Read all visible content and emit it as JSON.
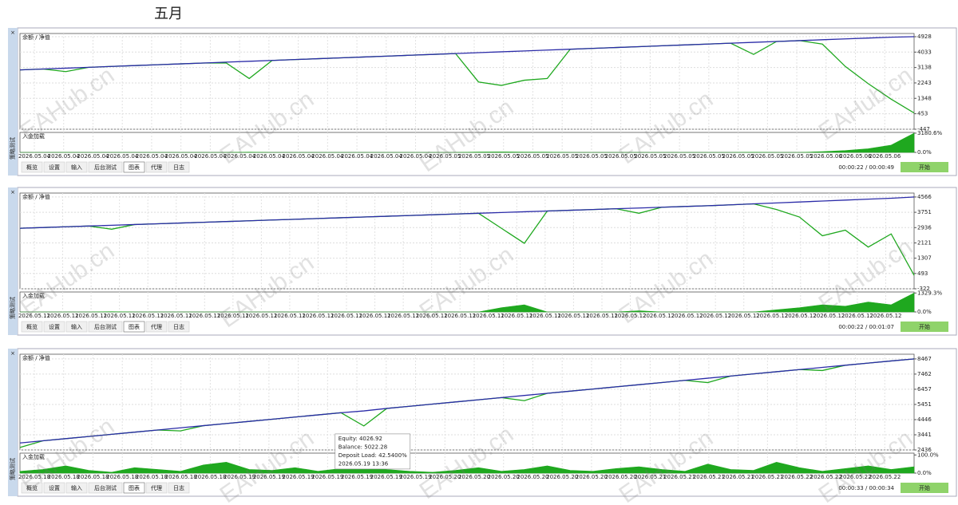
{
  "title": "五月",
  "watermark": "EAHub.cn",
  "balance_color": "#2b2ba8",
  "equity_color": "#1fa81f",
  "load_color": "#1fa81f",
  "tabs": [
    "概览",
    "设置",
    "输入",
    "后台测试",
    "图表",
    "代理",
    "日志"
  ],
  "active_tab": 4,
  "side_label": "策略测试",
  "close_icon": "×",
  "panels": [
    {
      "legend": "余额 / 净值",
      "ylim": [
        -447,
        5113
      ],
      "yticks": [
        4928,
        4033,
        3138,
        2243,
        1348,
        453,
        -447
      ],
      "balance": [
        3000,
        3050,
        3100,
        3150,
        3200,
        3250,
        3300,
        3350,
        3400,
        3450,
        3500,
        3550,
        3600,
        3650,
        3700,
        3750,
        3800,
        3850,
        3900,
        3950,
        4000,
        4050,
        4100,
        4150,
        4200,
        4250,
        4300,
        4350,
        4400,
        4450,
        4500,
        4550,
        4600,
        4650,
        4700,
        4750,
        4800,
        4850,
        4900,
        4928
      ],
      "equity": [
        3000,
        3050,
        2900,
        3150,
        3200,
        3250,
        3300,
        3350,
        3400,
        3400,
        2500,
        3550,
        3600,
        3650,
        3700,
        3750,
        3800,
        3850,
        3900,
        3950,
        2300,
        2100,
        2400,
        2500,
        4200,
        4250,
        4300,
        4350,
        4400,
        4450,
        4500,
        4550,
        3900,
        4650,
        4700,
        4500,
        3200,
        2200,
        1300,
        500
      ],
      "load_label": "入金加载",
      "load_lim": [
        0,
        3300
      ],
      "load_ticks": [
        {
          "value": 3180.6,
          "label": "3180.6%"
        },
        {
          "value": 0,
          "label": "0.0%"
        }
      ],
      "load": [
        0,
        0,
        5,
        0,
        0,
        0,
        0,
        0,
        0,
        0,
        40,
        0,
        0,
        0,
        0,
        0,
        0,
        0,
        0,
        0,
        60,
        80,
        50,
        40,
        0,
        0,
        0,
        0,
        0,
        0,
        0,
        0,
        30,
        0,
        0,
        120,
        300,
        600,
        1200,
        3180.6
      ],
      "dates": [
        "2026.05.04",
        "2026.05.04",
        "2026.05.04",
        "2026.05.04",
        "2026.05.04",
        "2026.05.04",
        "2026.05.04",
        "2026.05.04",
        "2026.05.04",
        "2026.05.04",
        "2026.05.04",
        "2026.05.04",
        "2026.05.04",
        "2026.05.04",
        "2026.05.05",
        "2026.05.05",
        "2026.05.05",
        "2026.05.05",
        "2026.05.05",
        "2026.05.05",
        "2026.05.05",
        "2026.05.05",
        "2026.05.05",
        "2026.05.05",
        "2026.05.05",
        "2026.05.05",
        "2026.05.05",
        "2026.05.06",
        "2026.05.06",
        "2026.05.06"
      ],
      "time": "00:00:22 / 00:00:49",
      "button": "开始"
    },
    {
      "legend": "余额 / 净值",
      "ylim": [
        -322,
        4775
      ],
      "yticks": [
        4566,
        3751,
        2936,
        2121,
        1307,
        493,
        -322
      ],
      "balance": [
        2900,
        2940,
        2980,
        3020,
        3060,
        3100,
        3140,
        3180,
        3220,
        3260,
        3300,
        3340,
        3380,
        3420,
        3460,
        3500,
        3540,
        3580,
        3620,
        3660,
        3700,
        3740,
        3780,
        3820,
        3860,
        3900,
        3940,
        3980,
        4020,
        4060,
        4100,
        4150,
        4200,
        4250,
        4300,
        4350,
        4400,
        4450,
        4500,
        4566
      ],
      "equity": [
        2900,
        2940,
        2980,
        3020,
        2850,
        3100,
        3140,
        3180,
        3220,
        3260,
        3300,
        3340,
        3380,
        3420,
        3460,
        3500,
        3540,
        3580,
        3620,
        3660,
        3700,
        2900,
        2100,
        3820,
        3860,
        3900,
        3940,
        3700,
        4020,
        4060,
        4100,
        4150,
        4200,
        3900,
        3500,
        2500,
        2800,
        1900,
        2600,
        400
      ],
      "load_label": "入金加载",
      "load_lim": [
        0,
        1400
      ],
      "load_ticks": [
        {
          "value": 1329.3,
          "label": "1329.3%"
        },
        {
          "value": 0,
          "label": "0.0%"
        }
      ],
      "load": [
        0,
        0,
        0,
        0,
        20,
        0,
        0,
        0,
        0,
        0,
        0,
        0,
        0,
        0,
        0,
        0,
        0,
        0,
        0,
        0,
        0,
        300,
        500,
        0,
        0,
        0,
        0,
        80,
        0,
        0,
        0,
        0,
        0,
        150,
        300,
        500,
        400,
        700,
        500,
        1329.3
      ],
      "dates": [
        "2026.05.11",
        "2026.05.11",
        "2026.05.11",
        "2026.05.11",
        "2026.05.11",
        "2026.05.11",
        "2026.05.11",
        "2026.05.11",
        "2026.05.11",
        "2026.05.11",
        "2026.05.11",
        "2026.05.11",
        "2026.05.11",
        "2026.05.11",
        "2026.05.11",
        "2026.05.11",
        "2026.05.11",
        "2026.05.11",
        "2026.05.11",
        "2026.05.11",
        "2026.05.11",
        "2026.05.12",
        "2026.05.12",
        "2026.05.12",
        "2026.05.12",
        "2026.05.12",
        "2026.05.12",
        "2026.05.12",
        "2026.05.12",
        "2026.05.12",
        "2026.05.12"
      ],
      "time": "00:00:22 / 00:01:07",
      "button": "开始"
    },
    {
      "legend": "余额 / 净值",
      "ylim": [
        2436,
        8779
      ],
      "yticks": [
        8467,
        7462,
        6457,
        5451,
        4446,
        3441,
        2436
      ],
      "balance": [
        2900,
        3043,
        3186,
        3329,
        3472,
        3615,
        3758,
        3901,
        4044,
        4187,
        4330,
        4473,
        4616,
        4759,
        4902,
        5022.28,
        5188,
        5331,
        5474,
        5617,
        5760,
        5903,
        6046,
        6189,
        6332,
        6475,
        6618,
        6761,
        6904,
        7047,
        7190,
        7333,
        7476,
        7619,
        7762,
        7905,
        8048,
        8191,
        8334,
        8467
      ],
      "equity": [
        2600,
        3043,
        3186,
        3329,
        3472,
        3615,
        3758,
        3700,
        4044,
        4187,
        4330,
        4473,
        4616,
        4759,
        4902,
        4026.92,
        5188,
        5331,
        5474,
        5617,
        5760,
        5903,
        5700,
        6189,
        6332,
        6475,
        6618,
        6761,
        6904,
        7047,
        6900,
        7333,
        7476,
        7619,
        7762,
        7700,
        8048,
        8191,
        8334,
        8467
      ],
      "load_label": "入金加载",
      "load_lim": [
        0,
        110
      ],
      "load_ticks": [
        {
          "value": 100,
          "label": "100.0%"
        },
        {
          "value": 0,
          "label": "0.0%"
        }
      ],
      "load": [
        10,
        20,
        40,
        15,
        5,
        30,
        20,
        10,
        45,
        60,
        20,
        15,
        30,
        10,
        25,
        42.54,
        20,
        10,
        5,
        15,
        30,
        10,
        20,
        40,
        15,
        10,
        25,
        35,
        20,
        10,
        50,
        20,
        15,
        60,
        30,
        10,
        25,
        40,
        20,
        35
      ],
      "dates": [
        "2026.05.18",
        "2026.05.18",
        "2026.05.18",
        "2026.05.18",
        "2026.05.18",
        "2026.05.18",
        "2026.05.18",
        "2026.05.19",
        "2026.05.19",
        "2026.05.19",
        "2026.05.19",
        "2026.05.19",
        "2026.05.19",
        "2026.05.19",
        "2026.05.20",
        "2026.05.20",
        "2026.05.20",
        "2026.05.20",
        "2026.05.20",
        "2026.05.20",
        "2026.05.20",
        "2026.05.21",
        "2026.05.21",
        "2026.05.21",
        "2026.05.21",
        "2026.05.21",
        "2026.05.22",
        "2026.05.22",
        "2026.05.22",
        "2026.05.22"
      ],
      "tooltip": {
        "index": 15,
        "lines": [
          "Equity: 4026.92",
          "Balance: 5022.28",
          "Deposit Load: 42.5400%",
          "2026.05.19 13:36"
        ]
      },
      "time": "00:00:33 / 00:00:34",
      "button": "开始"
    }
  ]
}
